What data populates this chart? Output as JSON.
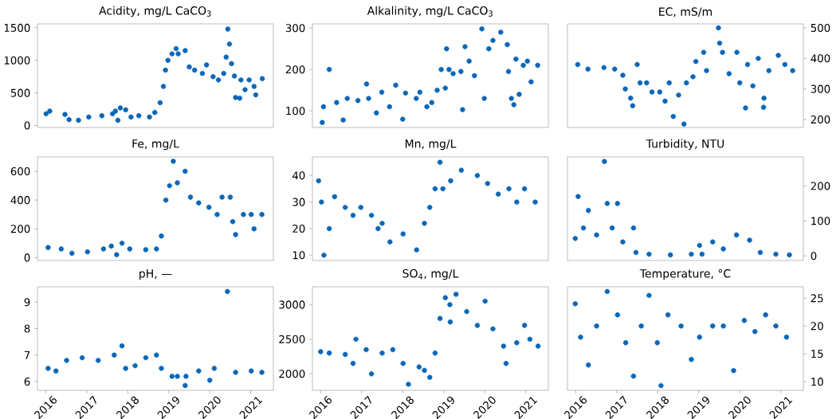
{
  "chart_data": [
    {
      "type": "scatter",
      "title": "Acidity, mg/L CaCO$_{3}$",
      "marker": "circle",
      "tick_labels": "y",
      "xlim": [
        2015.8,
        2021.55
      ],
      "ylim": [
        -30,
        1560
      ],
      "yticks": [
        0,
        500,
        1000,
        1500
      ],
      "x": [
        2016.01,
        2016.1,
        2016.47,
        2016.57,
        2016.8,
        2017.05,
        2017.37,
        2017.63,
        2017.7,
        2017.76,
        2017.82,
        2017.95,
        2018.08,
        2018.27,
        2018.53,
        2018.66,
        2018.79,
        2018.87,
        2018.92,
        2018.98,
        2019.08,
        2019.18,
        2019.23,
        2019.4,
        2019.5,
        2019.63,
        2019.82,
        2019.92,
        2020.08,
        2020.21,
        2020.34,
        2020.4,
        2020.44,
        2020.48,
        2020.53,
        2020.6,
        2020.63,
        2020.73,
        2020.76,
        2020.86,
        2020.96,
        2021.08,
        2021.12,
        2021.28
      ],
      "series": [
        {
          "color": "#0a67b8",
          "values": [
            180,
            220,
            170,
            90,
            80,
            130,
            150,
            180,
            220,
            80,
            270,
            240,
            130,
            150,
            130,
            200,
            350,
            600,
            850,
            1000,
            1100,
            1180,
            1100,
            1150,
            900,
            850,
            800,
            930,
            750,
            700,
            800,
            1050,
            1480,
            1250,
            950,
            760,
            430,
            420,
            700,
            550,
            700,
            600,
            470,
            720
          ]
        }
      ]
    },
    {
      "type": "scatter",
      "title": "Alkalinity, mg/L CaCO$_{3}$",
      "marker": "circle",
      "tick_labels": "y",
      "xlim": [
        2015.8,
        2021.55
      ],
      "ylim": [
        60,
        310
      ],
      "yticks": [
        100,
        200,
        300
      ],
      "x": [
        2016.04,
        2016.07,
        2016.21,
        2016.39,
        2016.55,
        2016.65,
        2016.91,
        2017.12,
        2017.17,
        2017.36,
        2017.49,
        2017.68,
        2017.83,
        2018.0,
        2018.07,
        2018.33,
        2018.42,
        2018.59,
        2018.71,
        2018.84,
        2018.94,
        2019.04,
        2019.07,
        2019.13,
        2019.23,
        2019.42,
        2019.46,
        2019.52,
        2019.62,
        2019.75,
        2019.93,
        2019.99,
        2020.1,
        2020.2,
        2020.39,
        2020.55,
        2020.58,
        2020.65,
        2020.71,
        2020.76,
        2020.84,
        2020.94,
        2021.04,
        2021.13,
        2021.29
      ],
      "series": [
        {
          "color": "#0a67b8",
          "values": [
            72,
            110,
            200,
            120,
            78,
            130,
            125,
            165,
            130,
            95,
            145,
            110,
            162,
            80,
            143,
            130,
            145,
            110,
            120,
            150,
            200,
            155,
            250,
            200,
            190,
            195,
            103,
            255,
            220,
            185,
            298,
            130,
            250,
            270,
            290,
            260,
            195,
            130,
            115,
            225,
            140,
            210,
            220,
            170,
            210
          ]
        }
      ]
    },
    {
      "type": "scatter",
      "title": "EC, mS/m",
      "marker": "circle",
      "tick_labels": "y",
      "xlim": [
        2015.8,
        2021.55
      ],
      "ylim": [
        174,
        513
      ],
      "yticks": [
        200,
        300,
        400,
        500
      ],
      "x": [
        2016.05,
        2016.3,
        2016.69,
        2016.95,
        2017.15,
        2017.21,
        2017.34,
        2017.39,
        2017.5,
        2017.57,
        2017.73,
        2017.86,
        2018.05,
        2018.18,
        2018.28,
        2018.38,
        2018.51,
        2018.64,
        2018.7,
        2018.86,
        2018.93,
        2019.12,
        2019.19,
        2019.48,
        2019.51,
        2019.58,
        2019.74,
        2019.93,
        2020.0,
        2020.14,
        2020.19,
        2020.32,
        2020.45,
        2020.58,
        2020.59,
        2020.71,
        2020.94,
        2021.1,
        2021.29
      ],
      "series": [
        {
          "color": "#0a67b8",
          "values": [
            380,
            365,
            370,
            365,
            345,
            300,
            270,
            245,
            380,
            320,
            320,
            290,
            290,
            260,
            320,
            210,
            280,
            185,
            320,
            340,
            390,
            420,
            360,
            500,
            450,
            420,
            350,
            420,
            320,
            238,
            380,
            310,
            400,
            240,
            270,
            360,
            410,
            380,
            360
          ]
        }
      ]
    },
    {
      "type": "scatter",
      "title": "Fe, mg/L",
      "marker": "circle",
      "tick_labels": "y",
      "xlim": [
        2015.8,
        2021.55
      ],
      "ylim": [
        -20,
        700
      ],
      "yticks": [
        0,
        200,
        400,
        600
      ],
      "x": [
        2016.06,
        2016.38,
        2016.64,
        2017.02,
        2017.41,
        2017.6,
        2017.73,
        2017.86,
        2018.05,
        2018.44,
        2018.7,
        2018.82,
        2018.93,
        2019.02,
        2019.11,
        2019.21,
        2019.4,
        2019.53,
        2019.73,
        2019.98,
        2020.18,
        2020.3,
        2020.5,
        2020.56,
        2020.63,
        2020.82,
        2021.01,
        2021.08,
        2021.27
      ],
      "series": [
        {
          "color": "#0a67b8",
          "values": [
            70,
            60,
            30,
            40,
            60,
            80,
            20,
            100,
            60,
            55,
            60,
            150,
            400,
            500,
            670,
            520,
            600,
            420,
            380,
            350,
            300,
            420,
            420,
            250,
            160,
            300,
            300,
            200,
            300
          ]
        }
      ]
    },
    {
      "type": "scatter",
      "title": "Mn, mg/L",
      "marker": "circle",
      "tick_labels": "y",
      "xlim": [
        2015.8,
        2021.55
      ],
      "ylim": [
        8,
        47
      ],
      "yticks": [
        10,
        20,
        30,
        40
      ],
      "x": [
        2015.95,
        2016.02,
        2016.08,
        2016.21,
        2016.34,
        2016.6,
        2016.79,
        2016.98,
        2017.24,
        2017.4,
        2017.5,
        2017.69,
        2018.01,
        2018.34,
        2018.53,
        2018.66,
        2018.79,
        2018.91,
        2018.98,
        2019.17,
        2019.43,
        2019.82,
        2020.07,
        2020.33,
        2020.59,
        2020.78,
        2020.97,
        2021.23
      ],
      "series": [
        {
          "color": "#0a67b8",
          "values": [
            38,
            30,
            10,
            20,
            32,
            28,
            25,
            28,
            25,
            20,
            22,
            15,
            18,
            12,
            22,
            28,
            35,
            45,
            35,
            38,
            42,
            40,
            37,
            33,
            35,
            30,
            35,
            30
          ]
        }
      ]
    },
    {
      "type": "scatter",
      "title": "Turbidity, NTU",
      "marker": "circle",
      "tick_labels": "y",
      "xlim": [
        2015.8,
        2021.55
      ],
      "ylim": [
        -13,
        283
      ],
      "yticks": [
        0,
        100,
        200
      ],
      "x": [
        2015.99,
        2016.06,
        2016.19,
        2016.31,
        2016.51,
        2016.7,
        2016.77,
        2016.89,
        2017.02,
        2017.15,
        2017.41,
        2017.47,
        2017.79,
        2018.31,
        2018.82,
        2019.02,
        2019.08,
        2019.34,
        2019.6,
        2019.92,
        2020.24,
        2020.5,
        2020.88,
        2021.21
      ],
      "series": [
        {
          "color": "#0a67b8",
          "values": [
            50,
            170,
            80,
            130,
            60,
            270,
            150,
            80,
            150,
            40,
            80,
            10,
            5,
            3,
            5,
            30,
            5,
            40,
            20,
            60,
            45,
            10,
            5,
            3
          ]
        }
      ]
    },
    {
      "type": "scatter",
      "title": "pH, —",
      "marker": "circle",
      "xlim": [
        2015.8,
        2021.55
      ],
      "ylim": [
        5.67,
        9.58
      ],
      "xticks": [
        2016,
        2017,
        2018,
        2019,
        2020,
        2021
      ],
      "yticks": [
        6,
        7,
        8,
        9
      ],
      "x": [
        2016.06,
        2016.25,
        2016.51,
        2016.89,
        2017.28,
        2017.67,
        2017.86,
        2017.95,
        2018.18,
        2018.44,
        2018.7,
        2018.82,
        2019.08,
        2019.21,
        2019.4,
        2019.42,
        2019.73,
        2020.0,
        2020.11,
        2020.43,
        2020.63,
        2021.01,
        2021.27
      ],
      "series": [
        {
          "color": "#0a67b8",
          "values": [
            6.5,
            6.4,
            6.8,
            6.9,
            6.8,
            7.0,
            7.35,
            6.5,
            6.6,
            6.9,
            7.0,
            6.5,
            6.2,
            6.2,
            5.85,
            6.2,
            6.4,
            6.05,
            6.5,
            9.4,
            6.35,
            6.4,
            6.35
          ]
        }
      ]
    },
    {
      "type": "scatter",
      "title": "SO$_{4}$, mg/L",
      "marker": "circle",
      "xlim": [
        2015.8,
        2021.55
      ],
      "ylim": [
        1762,
        3258
      ],
      "xticks": [
        2016,
        2017,
        2018,
        2019,
        2020,
        2021
      ],
      "yticks": [
        2000,
        2500,
        3000
      ],
      "x": [
        2016.0,
        2016.21,
        2016.6,
        2016.79,
        2016.86,
        2017.11,
        2017.24,
        2017.5,
        2017.76,
        2018.01,
        2018.14,
        2018.4,
        2018.53,
        2018.66,
        2018.79,
        2018.91,
        2019.04,
        2019.15,
        2019.16,
        2019.3,
        2019.56,
        2019.82,
        2020.01,
        2020.2,
        2020.46,
        2020.52,
        2020.78,
        2020.97,
        2021.1,
        2021.3
      ],
      "series": [
        {
          "color": "#0a67b8",
          "values": [
            2320,
            2300,
            2280,
            2150,
            2500,
            2350,
            2000,
            2300,
            2350,
            2150,
            1850,
            2100,
            2050,
            1950,
            2300,
            2800,
            3100,
            3000,
            2750,
            3150,
            2900,
            2700,
            3050,
            2650,
            2400,
            2150,
            2450,
            2700,
            2500,
            2400
          ]
        }
      ]
    },
    {
      "type": "scatter",
      "title": "Temperature, °C",
      "marker": "circle",
      "xlim": [
        2015.8,
        2021.55
      ],
      "ylim": [
        8.45,
        27.05
      ],
      "xticks": [
        2016,
        2017,
        2018,
        2019,
        2020,
        2021
      ],
      "yticks": [
        10,
        15,
        20,
        25
      ],
      "x": [
        2015.99,
        2016.12,
        2016.31,
        2016.51,
        2016.77,
        2017.02,
        2017.22,
        2017.41,
        2017.6,
        2017.79,
        2017.99,
        2018.08,
        2018.25,
        2018.57,
        2018.82,
        2019.02,
        2019.34,
        2019.6,
        2019.85,
        2020.11,
        2020.37,
        2020.63,
        2020.88,
        2021.14
      ],
      "series": [
        {
          "color": "#0a67b8",
          "values": [
            24,
            18,
            13,
            20,
            26.2,
            22,
            17,
            11,
            20,
            25.5,
            17,
            9.3,
            22,
            20,
            14,
            18,
            20,
            20,
            12,
            21,
            19,
            22,
            20,
            18
          ]
        }
      ]
    }
  ]
}
